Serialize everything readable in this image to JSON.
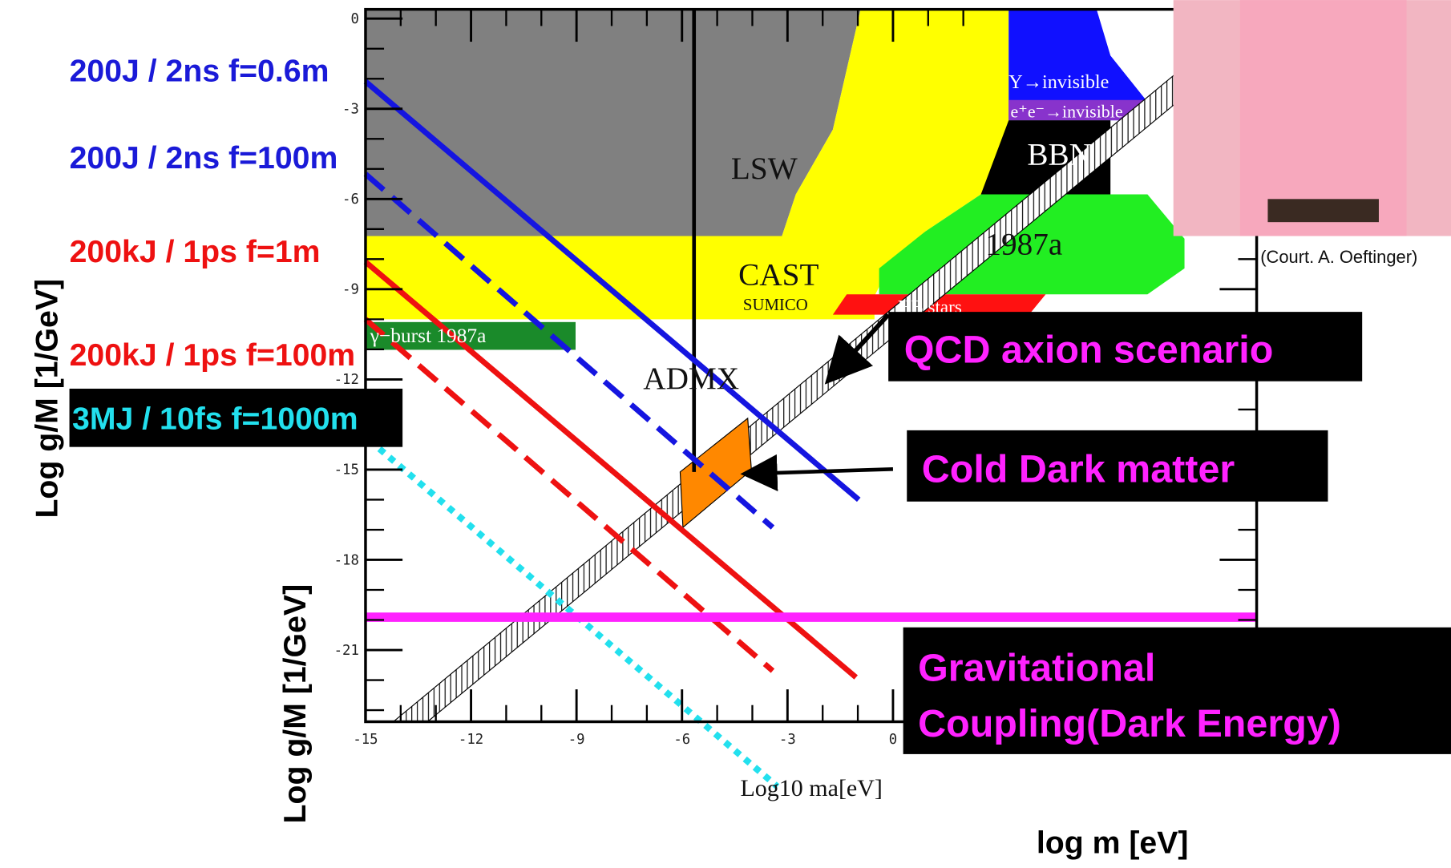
{
  "slide": {
    "beam_labels": [
      "200J / 2ns f=0.6m",
      "200J / 2ns f=100m",
      "200kJ / 1ps f=1m",
      "200kJ / 1ps f=100m",
      "3MJ / 10fs f=1000m"
    ],
    "outer_y_label": "Log g/M  [1/GeV]",
    "inner_y_label": "Log g/M  [1/GeV]",
    "outer_x_label": "log m  [eV]",
    "plot": {
      "x_label": "Log10 ma[eV]",
      "x_ticks": [
        "-15",
        "-12",
        "-9",
        "-6",
        "-3",
        "0"
      ],
      "y_ticks": [
        "0",
        "-3",
        "-6",
        "-9",
        "-12",
        "-15",
        "-18",
        "-21"
      ],
      "regions": {
        "lsw": "LSW",
        "cast": "CAST",
        "sumico": "SUMICO",
        "admx": "ADMX",
        "gamma_burst": "γ−burst 1987a",
        "sn": "1987a",
        "hb": "HB stars",
        "bbn": "BBN",
        "y_invisible": "Y→invisible",
        "ee_invisible": "e⁺e⁻→invisible"
      }
    },
    "callouts": [
      "QCD axion scenario",
      "Cold Dark matter",
      "Gravitational",
      "Coupling(Dark Energy)"
    ],
    "photo_caption": "(Court. A. Oeftinger)"
  }
}
